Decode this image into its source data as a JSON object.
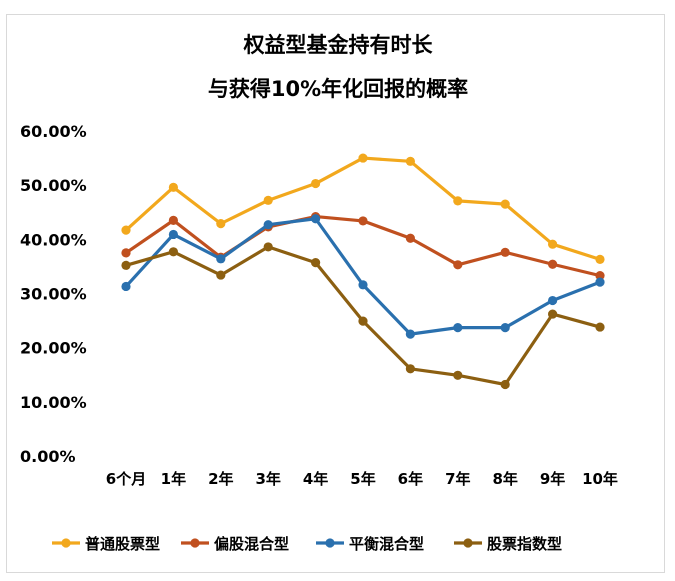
{
  "chart_data": {
    "type": "line",
    "title": [
      "权益型基金持有时长",
      "与获得10%年化回报的概率"
    ],
    "categories": [
      "6个月",
      "1年",
      "2年",
      "3年",
      "4年",
      "5年",
      "6年",
      "7年",
      "8年",
      "9年",
      "10年"
    ],
    "ylim": [
      0,
      0.6
    ],
    "yticks": [
      "60.00%",
      "50.00%",
      "40.00%",
      "30.00%",
      "20.00%",
      "10.00%",
      "0.00%"
    ],
    "ytick_values": [
      0.6,
      0.5,
      0.4,
      0.3,
      0.2,
      0.1,
      0.0
    ],
    "grid": false,
    "legend_position": "bottom",
    "series": [
      {
        "name": "普通股票型",
        "color": "#F2A81D",
        "values": [
          0.417,
          0.496,
          0.429,
          0.472,
          0.503,
          0.55,
          0.544,
          0.471,
          0.465,
          0.391,
          0.363
        ]
      },
      {
        "name": "偏股混合型",
        "color": "#C0501F",
        "values": [
          0.375,
          0.435,
          0.367,
          0.423,
          0.442,
          0.434,
          0.402,
          0.353,
          0.376,
          0.354,
          0.333
        ]
      },
      {
        "name": "平衡混合型",
        "color": "#2A70AE",
        "values": [
          0.313,
          0.409,
          0.364,
          0.427,
          0.438,
          0.316,
          0.225,
          0.237,
          0.237,
          0.287,
          0.321
        ]
      },
      {
        "name": "股票指数型",
        "color": "#8C5F11",
        "values": [
          0.352,
          0.377,
          0.334,
          0.386,
          0.357,
          0.249,
          0.161,
          0.149,
          0.132,
          0.262,
          0.238
        ]
      }
    ]
  }
}
